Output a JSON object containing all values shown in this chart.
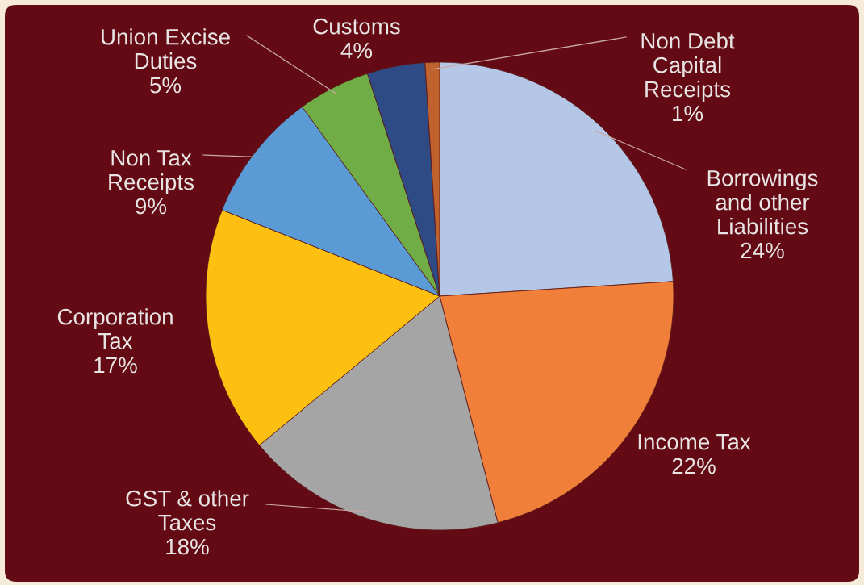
{
  "chart_data": {
    "type": "pie",
    "categories": [
      "Borrowings\nand other\nLiabilities",
      "Income Tax",
      "GST & other\nTaxes",
      "Corporation\nTax",
      "Non Tax\nReceipts",
      "Union Excise\nDuties",
      "Customs",
      "Non Debt\nCapital\nReceipts"
    ],
    "values": [
      24,
      22,
      18,
      17,
      9,
      5,
      4,
      1
    ],
    "value_labels": [
      "24%",
      "22%",
      "18%",
      "17%",
      "9%",
      "5%",
      "4%",
      "1%"
    ],
    "colors": [
      "#b4c7e7",
      "#f07f3a",
      "#a5a5a5",
      "#fdc010",
      "#5b9bd5",
      "#70ad47",
      "#2f4b85",
      "#c0622e"
    ]
  }
}
